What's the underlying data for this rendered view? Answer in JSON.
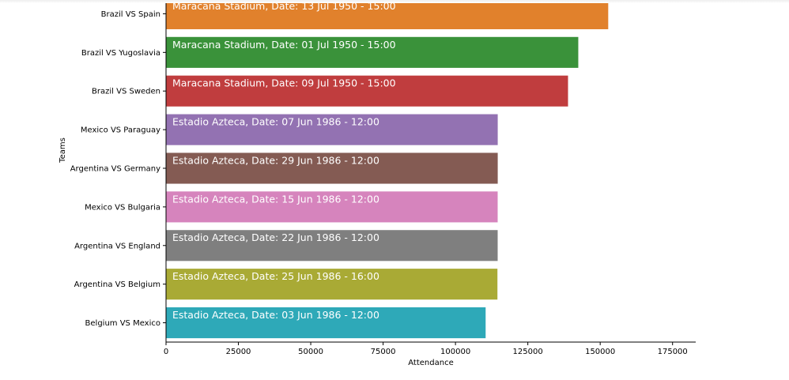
{
  "chart_data": {
    "type": "bar",
    "orientation": "horizontal",
    "xlabel": "Attendance",
    "ylabel": "Teams",
    "xlim": [
      0,
      183000
    ],
    "xticks": [
      0,
      25000,
      50000,
      75000,
      100000,
      125000,
      150000,
      175000
    ],
    "grid": false,
    "categories": [
      "Brazil VS Spain",
      "Brazil VS Yugoslavia",
      "Brazil VS Sweden",
      "Mexico VS Paraguay",
      "Argentina VS Germany",
      "Mexico VS Bulgaria",
      "Argentina VS England",
      "Argentina VS Belgium",
      "Belgium VS Mexico"
    ],
    "values": [
      152772,
      142429,
      138886,
      114600,
      114600,
      114580,
      114580,
      114500,
      110420
    ],
    "annotations": [
      "Maracana Stadium,  Date: 13 Jul 1950 - 15:00",
      "Maracana Stadium,  Date: 01 Jul 1950 - 15:00",
      "Maracana Stadium,  Date: 09 Jul 1950 - 15:00",
      "Estadio Azteca,  Date: 07 Jun 1986 - 12:00",
      "Estadio Azteca,  Date: 29 Jun 1986 - 12:00",
      "Estadio Azteca,  Date: 15 Jun 1986 - 12:00",
      "Estadio Azteca,  Date: 22 Jun 1986 - 12:00",
      "Estadio Azteca,  Date: 25 Jun 1986 - 16:00",
      "Estadio Azteca,  Date: 03 Jun 1986 - 12:00"
    ],
    "colors": [
      "#e1812c",
      "#3a923a",
      "#c03d3e",
      "#9372b2",
      "#845b53",
      "#d684bd",
      "#7f7f7f",
      "#a9aa35",
      "#2ea9b8"
    ]
  }
}
